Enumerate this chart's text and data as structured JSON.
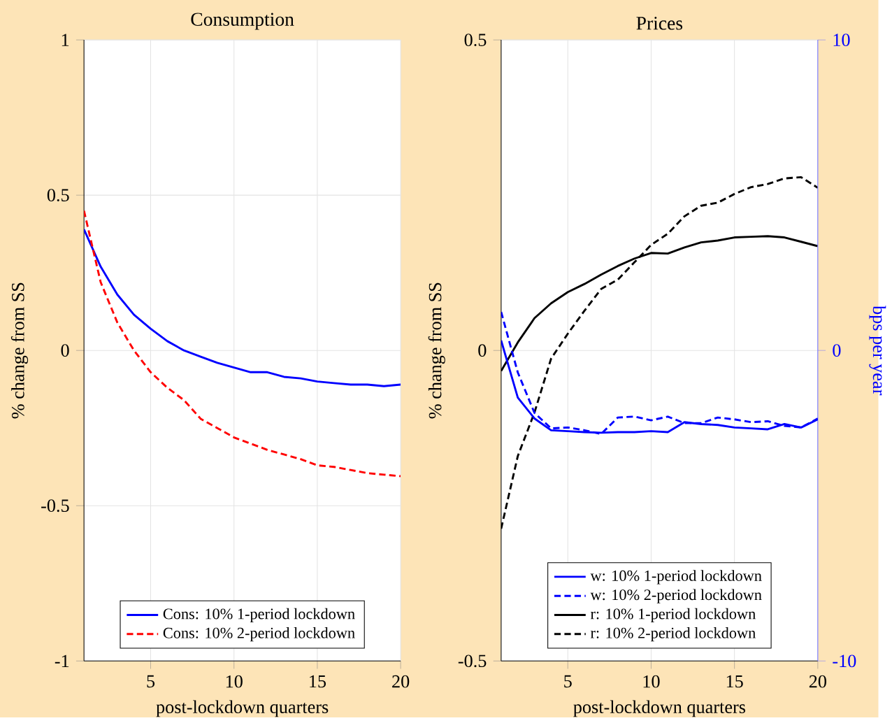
{
  "chart_data": [
    {
      "type": "line",
      "title": "Consumption",
      "xlabel": "post-lockdown quarters",
      "ylabel": "% change from SS",
      "x": [
        1,
        2,
        3,
        4,
        5,
        6,
        7,
        8,
        9,
        10,
        11,
        12,
        13,
        14,
        15,
        16,
        17,
        18,
        19,
        20
      ],
      "xlim": [
        1,
        20
      ],
      "xticks": [
        5,
        10,
        15,
        20
      ],
      "ylim": [
        -1,
        1
      ],
      "yticks": [
        -1,
        -0.5,
        0,
        0.5,
        1
      ],
      "grid": true,
      "legend": "bottom",
      "series": [
        {
          "name": "Cons: 10% 1-period lockdown",
          "color": "#0000ff",
          "line_style": "solid",
          "values": [
            0.39,
            0.27,
            0.18,
            0.115,
            0.07,
            0.03,
            0.0,
            -0.02,
            -0.04,
            -0.055,
            -0.07,
            -0.07,
            -0.085,
            -0.09,
            -0.1,
            -0.105,
            -0.11,
            -0.11,
            -0.115,
            -0.11
          ]
        },
        {
          "name": "Cons: 10% 2-period lockdown",
          "color": "#ff0000",
          "line_style": "dashed",
          "values": [
            0.45,
            0.22,
            0.09,
            0.0,
            -0.07,
            -0.12,
            -0.16,
            -0.22,
            -0.25,
            -0.28,
            -0.3,
            -0.32,
            -0.335,
            -0.35,
            -0.37,
            -0.375,
            -0.385,
            -0.395,
            -0.4,
            -0.405
          ]
        }
      ]
    },
    {
      "type": "line",
      "title": "Prices",
      "xlabel": "post-lockdown quarters",
      "ylabel": "% change from SS",
      "y2label": "bps per year",
      "x": [
        1,
        2,
        3,
        4,
        5,
        6,
        7,
        8,
        9,
        10,
        11,
        12,
        13,
        14,
        15,
        16,
        17,
        18,
        19,
        20
      ],
      "xlim": [
        1,
        20
      ],
      "xticks": [
        5,
        10,
        15,
        20
      ],
      "ylim": [
        -0.5,
        0.5
      ],
      "yticks": [
        -0.5,
        0,
        0.5
      ],
      "y2lim": [
        -10,
        10
      ],
      "y2ticks": [
        -10,
        0,
        10
      ],
      "grid": true,
      "legend": "bottom",
      "series": [
        {
          "name": "w: 10% 1-period lockdown",
          "color": "#0000ff",
          "line_style": "solid",
          "axis": "y2",
          "values": [
            0.32,
            -1.52,
            -2.19,
            -2.57,
            -2.6,
            -2.63,
            -2.65,
            -2.63,
            -2.63,
            -2.6,
            -2.63,
            -2.31,
            -2.37,
            -2.4,
            -2.48,
            -2.51,
            -2.54,
            -2.37,
            -2.48,
            -2.22
          ]
        },
        {
          "name": "w: 10% 2-period lockdown",
          "color": "#0000ff",
          "line_style": "dashed",
          "axis": "y2",
          "values": [
            1.24,
            -0.71,
            -2.01,
            -2.51,
            -2.48,
            -2.57,
            -2.69,
            -2.16,
            -2.13,
            -2.25,
            -2.13,
            -2.34,
            -2.34,
            -2.16,
            -2.22,
            -2.31,
            -2.28,
            -2.43,
            -2.48,
            -2.19
          ]
        },
        {
          "name": "r: 10% 1-period lockdown",
          "color": "#000000",
          "line_style": "solid",
          "values": [
            -0.033,
            0.013,
            0.052,
            0.076,
            0.094,
            0.107,
            0.122,
            0.136,
            0.148,
            0.157,
            0.156,
            0.166,
            0.174,
            0.177,
            0.182,
            0.183,
            0.184,
            0.182,
            0.175,
            0.168
          ]
        },
        {
          "name": "r: 10% 2-period lockdown",
          "color": "#000000",
          "line_style": "dashed",
          "values": [
            -0.287,
            -0.17,
            -0.1,
            -0.013,
            0.027,
            0.064,
            0.099,
            0.114,
            0.142,
            0.17,
            0.188,
            0.216,
            0.233,
            0.238,
            0.252,
            0.263,
            0.268,
            0.277,
            0.279,
            0.262
          ]
        }
      ]
    }
  ]
}
